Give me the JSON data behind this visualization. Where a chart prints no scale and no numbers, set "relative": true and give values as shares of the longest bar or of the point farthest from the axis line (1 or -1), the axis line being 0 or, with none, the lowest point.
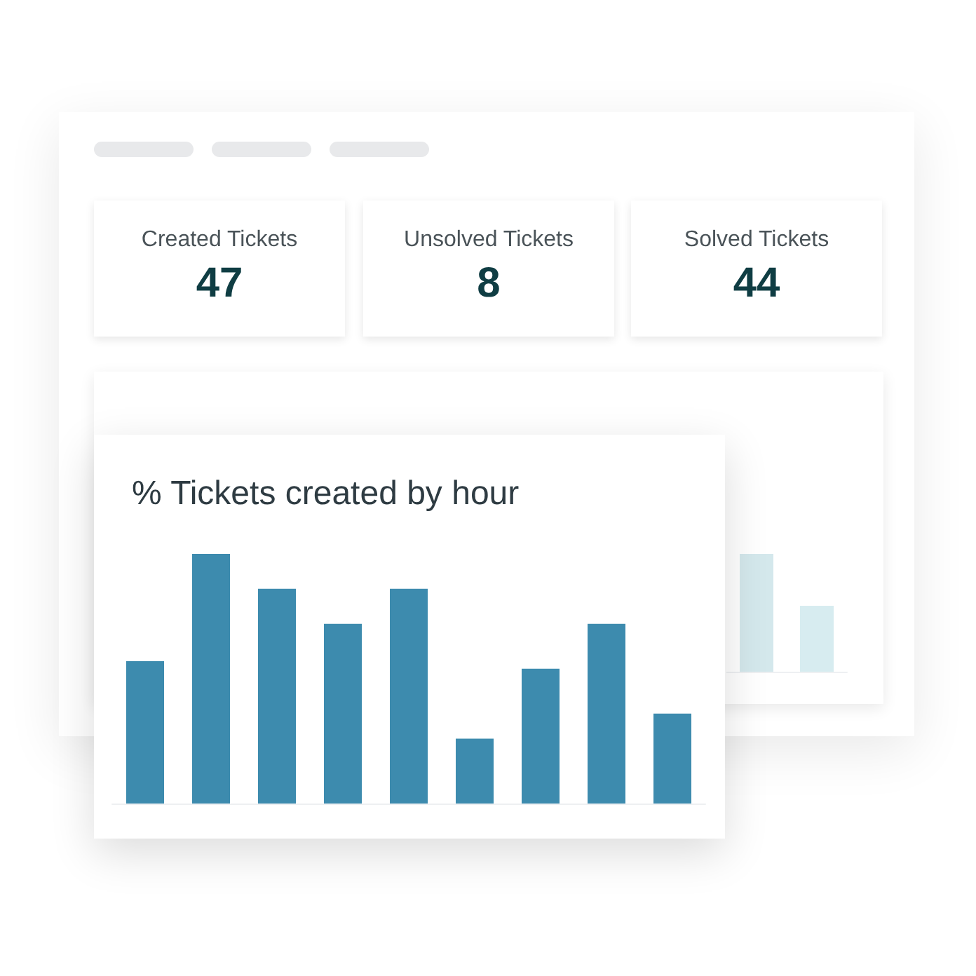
{
  "chart_data": [
    {
      "type": "other",
      "title": "Created Tickets",
      "annotations": [
        "47"
      ]
    },
    {
      "type": "other",
      "title": "Unsolved Tickets",
      "annotations": [
        "8"
      ]
    },
    {
      "type": "other",
      "title": "Solved Tickets",
      "annotations": [
        "44"
      ]
    },
    {
      "type": "bar",
      "relative": true,
      "categories": [
        null,
        null
      ],
      "values": [
        1,
        0.56
      ],
      "colors": [
        "#d4e8ec",
        "#d7ecf0"
      ]
    },
    {
      "type": "bar",
      "title": "% Tickets created by hour",
      "relative": true,
      "categories": [
        null,
        null,
        null,
        null,
        null,
        null,
        null,
        null,
        null
      ],
      "values": [
        0.57,
        1,
        0.86,
        0.72,
        0.86,
        0.26,
        0.54,
        0.72,
        0.36
      ],
      "color": "#3d8bae"
    }
  ]
}
